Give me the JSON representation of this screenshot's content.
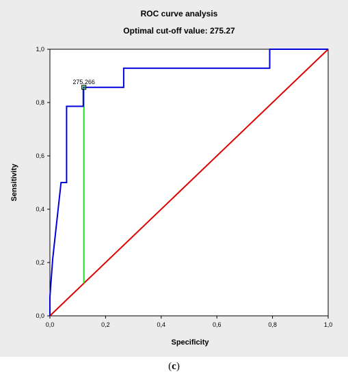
{
  "chart_data": {
    "type": "line",
    "title": "ROC curve analysis",
    "subtitle": "Optimal cut-off value: 275.27",
    "xlabel": "Specificity",
    "ylabel": "Sensitivity",
    "xlim": [
      0,
      1
    ],
    "ylim": [
      0,
      1
    ],
    "x_ticks": [
      "0,0",
      "0,2",
      "0,4",
      "0,6",
      "0,8",
      "1,0"
    ],
    "y_ticks": [
      "0,0",
      "0,2",
      "0,4",
      "0,6",
      "0,8",
      "1,0"
    ],
    "grid": false,
    "series": [
      {
        "color": "#0000dd",
        "x": [
          0,
          0,
          0.01,
          0.04,
          0.04,
          0.06,
          0.06,
          0.12,
          0.12,
          0.265,
          0.265,
          0.79,
          0.79,
          1.0
        ],
        "y": [
          0,
          0.071,
          0.214,
          0.5,
          0.5,
          0.5,
          0.786,
          0.786,
          0.857,
          0.857,
          0.929,
          0.929,
          1.0,
          1.0
        ]
      },
      {
        "color": "#e00000",
        "x": [
          0,
          1
        ],
        "y": [
          0,
          1
        ]
      },
      {
        "color": "#22dd22",
        "x": [
          0.122,
          0.122
        ],
        "y": [
          0.122,
          0.857
        ]
      }
    ],
    "optimal_point": {
      "x": 0.122,
      "y": 0.857,
      "label": "275.266"
    }
  },
  "caption": {
    "open": "(",
    "letter": "c",
    "close": ")"
  },
  "colors": {
    "frame_background": "#ececec",
    "plot_background": "#ffffff"
  }
}
